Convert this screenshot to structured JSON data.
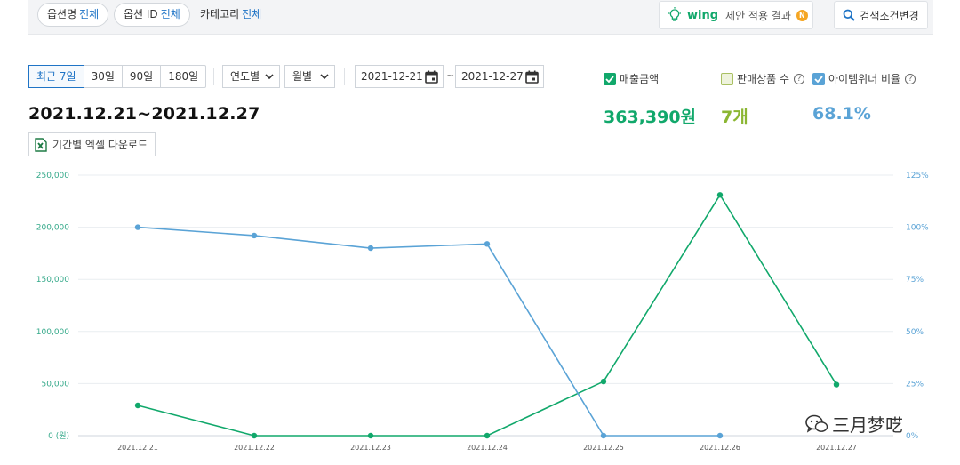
{
  "filters": {
    "option_name": {
      "label": "옵션명",
      "value": "전체"
    },
    "option_id": {
      "label": "옵션 ID",
      "value": "전체"
    },
    "category": {
      "label": "카테고리",
      "value": "전체"
    }
  },
  "wing": {
    "brand": "wing",
    "text": "제안 적용 결과",
    "badge": "N"
  },
  "search_button": "검색조건변경",
  "period_tabs": [
    "최근 7일",
    "30일",
    "90일",
    "180일"
  ],
  "active_period": 0,
  "dropdowns": {
    "yearly": "연도별",
    "monthly": "월별"
  },
  "dates": {
    "start": "2021-12-21",
    "separator": "~",
    "end": "2021-12-27"
  },
  "metrics": {
    "sales": {
      "label": "매출금액",
      "value": "363,390원",
      "checked": true,
      "color": "#11a86b"
    },
    "products": {
      "label": "판매상품 수",
      "value": "7개",
      "checked": false,
      "color": "#8bb632"
    },
    "item_winner": {
      "label": "아이템위너 비율",
      "value": "68.1%",
      "checked": true,
      "color": "#5aa3d6"
    }
  },
  "range_title": "2021.12.21~2021.12.27",
  "excel_button": "기간별 엑셀 다운로드",
  "watermark": "三月梦呓",
  "chart_data": {
    "type": "line",
    "categories": [
      "2021.12.21",
      "2021.12.22",
      "2021.12.23",
      "2021.12.24",
      "2021.12.25",
      "2021.12.26",
      "2021.12.27"
    ],
    "series": [
      {
        "name": "매출금액",
        "axis": "left",
        "color": "#11a86b",
        "values": [
          29000,
          0,
          0,
          0,
          52000,
          231000,
          49000
        ]
      },
      {
        "name": "아이템위너 비율",
        "axis": "right",
        "color": "#5aa3d6",
        "values": [
          100,
          96,
          90,
          92,
          0,
          0,
          null
        ]
      }
    ],
    "y_left": {
      "ylim": [
        0,
        250000
      ],
      "ticks": [
        "250,000",
        "200,000",
        "150,000",
        "100,000",
        "50,000",
        "0 (원)"
      ],
      "tick_values": [
        250000,
        200000,
        150000,
        100000,
        50000,
        0
      ]
    },
    "y_right": {
      "ylim": [
        0,
        125
      ],
      "ticks": [
        "125%",
        "100%",
        "75%",
        "50%",
        "25%",
        "0%"
      ],
      "tick_values": [
        125,
        100,
        75,
        50,
        25,
        0
      ]
    },
    "grid": true
  }
}
